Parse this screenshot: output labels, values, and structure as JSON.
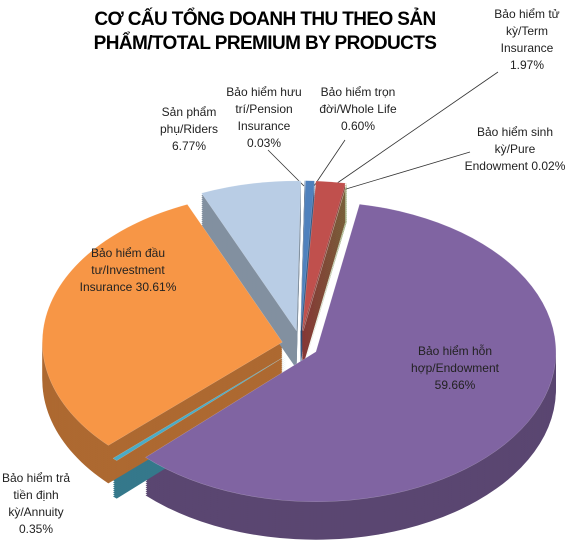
{
  "chart_data": {
    "type": "pie",
    "title": "CƠ CẤU TỔNG DOANH THU THEO SẢN PHẨM/TOTAL PREMIUM BY PRODUCTS",
    "categories": [
      "Bảo hiểm trọn đời/Whole Life",
      "Bảo hiểm tử kỳ/Term Insurance",
      "Bảo hiểm sinh kỳ/Pure Endowment",
      "Bảo hiểm hỗn hợp/Endowment",
      "Bảo hiểm trả tiền định kỳ/Annuity",
      "Bảo hiểm đầu tư/Investment Insurance",
      "Sản phẩm phụ/Riders",
      "Bảo hiểm hưu trí/Pension Insurance"
    ],
    "values": [
      0.6,
      1.97,
      0.02,
      59.66,
      0.35,
      30.61,
      6.77,
      0.03
    ],
    "value_labels": [
      "0.60%",
      "1.97%",
      "0.02%",
      "59.66%",
      "0.35%",
      "30.61%",
      "6.77%",
      "0.03%"
    ],
    "colors": [
      "#4f81bd",
      "#c0504d",
      "#9bbb59",
      "#8064a2",
      "#4bacc6",
      "#f79646",
      "#b9cde5",
      "#1f497d"
    ]
  }
}
